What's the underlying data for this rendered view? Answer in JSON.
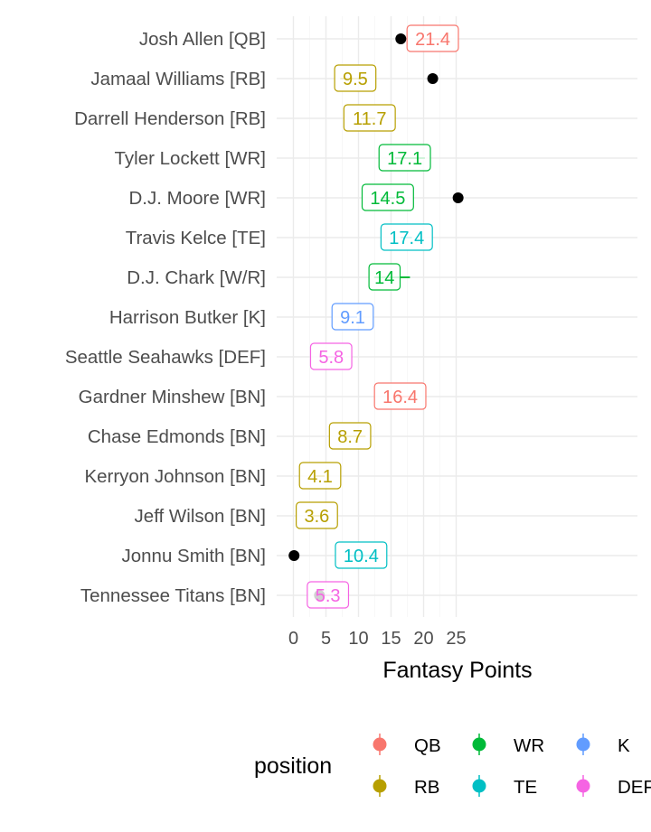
{
  "chart_data": {
    "type": "dot-interval",
    "xlabel": "Fantasy Points",
    "xlim": [
      -2,
      26.5
    ],
    "x_ticks": [
      0,
      5,
      10,
      15,
      20,
      25
    ],
    "grid": true,
    "legend_position": "bottom",
    "legend_title": "position",
    "legend": [
      {
        "name": "QB",
        "color": "#F8766D"
      },
      {
        "name": "WR",
        "color": "#00BA38"
      },
      {
        "name": "K",
        "color": "#619CFF"
      },
      {
        "name": "RB",
        "color": "#B79F00"
      },
      {
        "name": "TE",
        "color": "#00BFC4"
      },
      {
        "name": "DEF",
        "color": "#F564E3"
      }
    ],
    "players": [
      {
        "name": "Josh Allen [QB]",
        "position": "QB",
        "projected": 21.4,
        "low": 19.6,
        "high": 23.6,
        "actual": 16.5
      },
      {
        "name": "Jamaal Williams [RB]",
        "position": "RB",
        "projected": 9.5,
        "low": 7.2,
        "high": 11.3,
        "actual": 21.4
      },
      {
        "name": "Darrell Henderson [RB]",
        "position": "RB",
        "projected": 11.7,
        "low": 10.4,
        "high": 12.6,
        "actual": null
      },
      {
        "name": "Tyler Lockett [WR]",
        "position": "WR",
        "projected": 17.1,
        "low": 15.6,
        "high": 20.2,
        "actual": null
      },
      {
        "name": "D.J. Moore [WR]",
        "position": "WR",
        "projected": 14.5,
        "low": 13.4,
        "high": 15.6,
        "actual": 25.3
      },
      {
        "name": "Travis Kelce [TE]",
        "position": "TE",
        "projected": 17.4,
        "low": 16.5,
        "high": 18.2,
        "actual": null
      },
      {
        "name": "D.J. Chark [W/R]",
        "position": "WR",
        "projected": 14,
        "low": 12.4,
        "high": 17.9,
        "actual": null
      },
      {
        "name": "Harrison Butker [K]",
        "position": "K",
        "projected": 9.1,
        "low": 8.3,
        "high": 9.8,
        "actual": null
      },
      {
        "name": "Seattle Seahawks [DEF]",
        "position": "DEF",
        "projected": 5.8,
        "low": 5.0,
        "high": 6.6,
        "actual": null
      },
      {
        "name": "Gardner Minshew [BN]",
        "position": "QB",
        "projected": 16.4,
        "low": 15.3,
        "high": 18.6,
        "actual": null
      },
      {
        "name": "Chase Edmonds [BN]",
        "position": "RB",
        "projected": 8.7,
        "low": 7.9,
        "high": 11.1,
        "actual": null
      },
      {
        "name": "Kerryon Johnson [BN]",
        "position": "RB",
        "projected": 4.1,
        "low": 3.4,
        "high": 4.8,
        "actual": null
      },
      {
        "name": "Jeff Wilson [BN]",
        "position": "RB",
        "projected": 3.6,
        "low": 2.8,
        "high": 4.4,
        "actual": null
      },
      {
        "name": "Jonnu Smith [BN]",
        "position": "TE",
        "projected": 10.4,
        "low": 8.4,
        "high": 12.6,
        "actual": 0.1
      },
      {
        "name": "Tennessee Titans [BN]",
        "position": "DEF",
        "projected": 5.3,
        "low": 4.5,
        "high": 6.1,
        "actual": 4.0
      }
    ]
  }
}
